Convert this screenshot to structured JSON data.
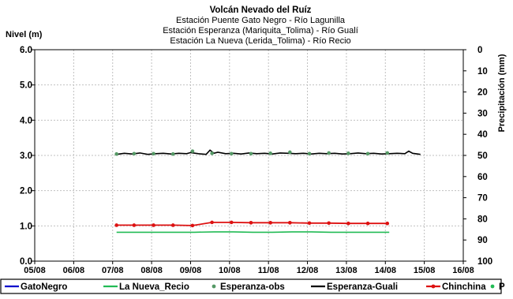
{
  "chart_data": {
    "type": "line",
    "title_lines": [
      "Volcán Nevado del Ruíz",
      "Estación Puente Gato Negro - Río Lagunilla",
      "Estación Esperanza (Mariquita_Tolima) - Río Gualí",
      "Estación La Nueva (Lerida_Tolima) - Río Recio"
    ],
    "ylabel": "Nivel (m)",
    "y2label": "Precipitación (mm)",
    "xlim": [
      "05/08",
      "16/08"
    ],
    "x_ticks": [
      "05/08",
      "06/08",
      "07/08",
      "08/08",
      "09/08",
      "10/08",
      "11/08",
      "12/08",
      "13/08",
      "14/08",
      "15/08",
      "16/08"
    ],
    "ylim": [
      0,
      6
    ],
    "y_ticks": [
      "0.0",
      "1.0",
      "2.0",
      "3.0",
      "4.0",
      "5.0",
      "6.0"
    ],
    "y2lim": [
      0,
      100
    ],
    "y2_reversed": true,
    "y2_ticks": [
      "0",
      "10",
      "20",
      "30",
      "40",
      "50",
      "60",
      "70",
      "80",
      "90",
      "100"
    ],
    "grid": true,
    "legend_position": "bottom",
    "legend": [
      {
        "name": "GatoNegro",
        "color": "#0000cc",
        "marker": "line"
      },
      {
        "name": "La Nueva_Recio",
        "color": "#22bb55",
        "marker": "line"
      },
      {
        "name": "Esperanza-obs",
        "color": "#559966",
        "marker": "dot"
      },
      {
        "name": "Esperanza-Guali",
        "color": "#000000",
        "marker": "line"
      },
      {
        "name": "Chinchina",
        "color": "#dd1111",
        "marker": "line-dot"
      },
      {
        "name": "P",
        "color": "#22bb55",
        "marker": "dot"
      }
    ],
    "series": [
      {
        "name": "Esperanza-Guali",
        "color": "#000000",
        "x": [
          7.1,
          7.3,
          7.5,
          7.7,
          7.9,
          8.1,
          8.3,
          8.5,
          8.7,
          8.9,
          9.0,
          9.2,
          9.4,
          9.5,
          9.6,
          9.7,
          9.9,
          10.1,
          10.3,
          10.5,
          10.7,
          10.9,
          11.1,
          11.3,
          11.5,
          11.7,
          11.9,
          12.1,
          12.3,
          12.5,
          12.7,
          12.9,
          13.1,
          13.3,
          13.5,
          13.7,
          13.9,
          14.1,
          14.3,
          14.5,
          14.6,
          14.7,
          14.9
        ],
        "y": [
          3.03,
          3.06,
          3.04,
          3.07,
          3.03,
          3.05,
          3.06,
          3.04,
          3.06,
          3.05,
          3.08,
          3.05,
          3.03,
          3.15,
          3.06,
          3.09,
          3.05,
          3.06,
          3.04,
          3.07,
          3.05,
          3.06,
          3.04,
          3.07,
          3.06,
          3.05,
          3.06,
          3.04,
          3.06,
          3.05,
          3.06,
          3.04,
          3.05,
          3.07,
          3.05,
          3.06,
          3.04,
          3.05,
          3.06,
          3.05,
          3.12,
          3.06,
          3.03
        ]
      },
      {
        "name": "Esperanza-obs",
        "color": "#559966",
        "x": [
          7.1,
          7.55,
          8.05,
          8.55,
          9.05,
          9.55,
          10.05,
          10.55,
          11.05,
          11.55,
          12.05,
          12.55,
          13.05,
          13.55,
          14.05
        ],
        "y": [
          3.04,
          3.05,
          3.05,
          3.04,
          3.12,
          3.06,
          3.05,
          3.05,
          3.06,
          3.09,
          3.05,
          3.07,
          3.06,
          3.05,
          3.07
        ]
      },
      {
        "name": "Chinchina",
        "color": "#dd1111",
        "x": [
          7.1,
          7.55,
          8.05,
          8.55,
          9.05,
          9.55,
          10.05,
          10.55,
          11.05,
          11.55,
          12.05,
          12.55,
          13.05,
          13.55,
          14.05
        ],
        "y": [
          1.02,
          1.02,
          1.02,
          1.02,
          1.01,
          1.1,
          1.1,
          1.09,
          1.09,
          1.09,
          1.08,
          1.08,
          1.07,
          1.07,
          1.07
        ]
      },
      {
        "name": "La Nueva_Recio",
        "color": "#22bb55",
        "x": [
          7.1,
          7.6,
          8.1,
          8.6,
          9.1,
          9.6,
          10.1,
          10.6,
          11.1,
          11.6,
          12.1,
          12.6,
          13.1,
          13.6,
          14.1
        ],
        "y": [
          0.82,
          0.82,
          0.82,
          0.82,
          0.82,
          0.83,
          0.83,
          0.82,
          0.82,
          0.83,
          0.83,
          0.82,
          0.82,
          0.82,
          0.82
        ]
      }
    ]
  }
}
